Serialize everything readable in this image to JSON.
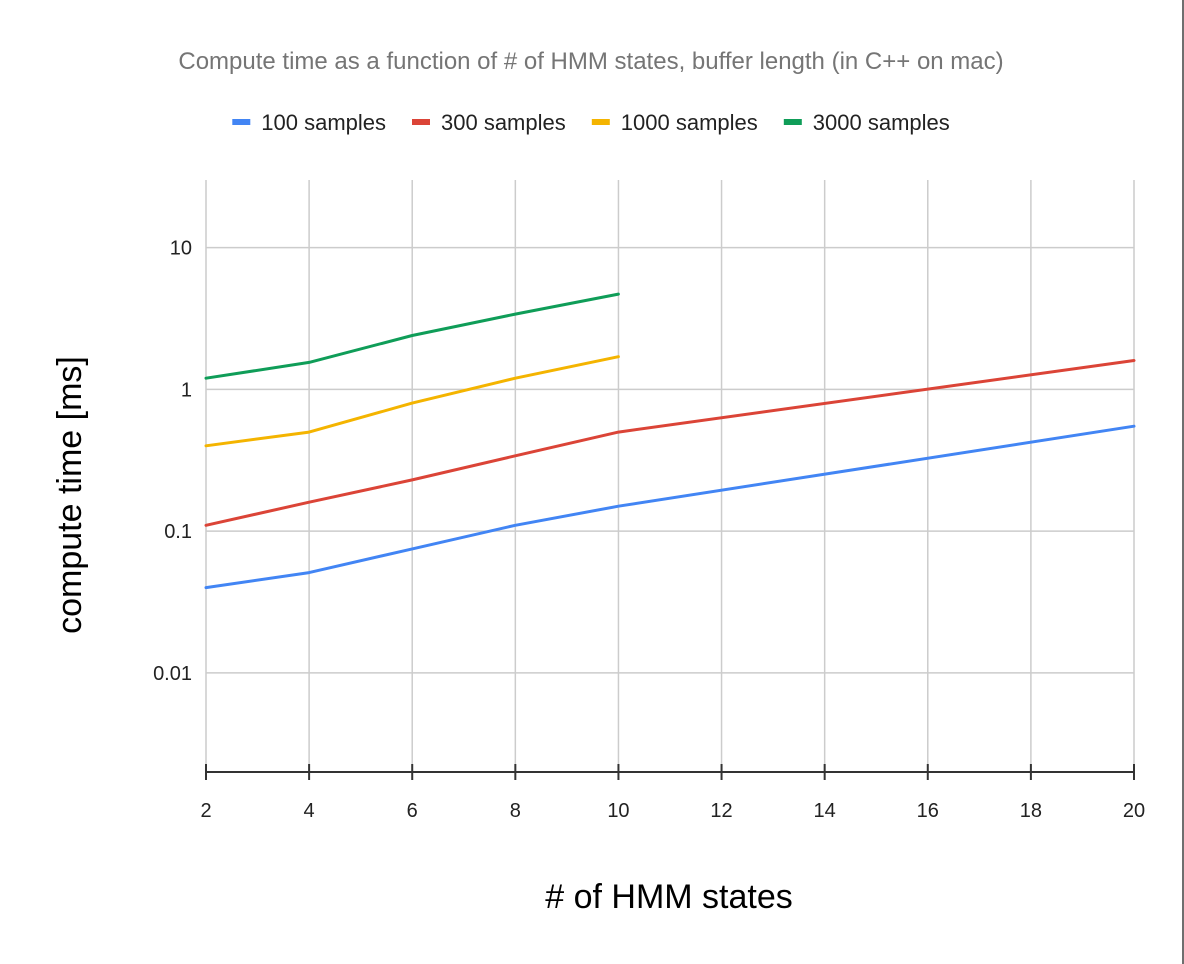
{
  "chart_data": {
    "type": "line",
    "title": "Compute time as a function of # of HMM states, buffer length  (in C++ on mac)",
    "xlabel": "# of HMM states",
    "ylabel": "compute time [ms]",
    "xlim": [
      2,
      20
    ],
    "xticks": [
      "2",
      "4",
      "6",
      "8",
      "10",
      "12",
      "14",
      "16",
      "18",
      "20"
    ],
    "yscale": "log",
    "ylim": [
      0.002,
      30
    ],
    "yticks": [
      {
        "value": 10,
        "label": "10"
      },
      {
        "value": 1,
        "label": "1"
      },
      {
        "value": 0.1,
        "label": "0.1"
      },
      {
        "value": 0.01,
        "label": "0.01"
      }
    ],
    "grid": true,
    "legend": "top",
    "series": [
      {
        "name": "100 samples",
        "color": "#4285f4",
        "points": [
          [
            2,
            0.04
          ],
          [
            4,
            0.051
          ],
          [
            6,
            0.075
          ],
          [
            8,
            0.11
          ],
          [
            10,
            0.15
          ],
          [
            20,
            0.55
          ]
        ]
      },
      {
        "name": "300 samples",
        "color": "#db4437",
        "points": [
          [
            2,
            0.11
          ],
          [
            4,
            0.16
          ],
          [
            6,
            0.23
          ],
          [
            8,
            0.34
          ],
          [
            10,
            0.5
          ],
          [
            20,
            1.6
          ]
        ]
      },
      {
        "name": "1000 samples",
        "color": "#f4b400",
        "points": [
          [
            2,
            0.4
          ],
          [
            4,
            0.5
          ],
          [
            6,
            0.8
          ],
          [
            8,
            1.2
          ],
          [
            10,
            1.7
          ]
        ]
      },
      {
        "name": "3000 samples",
        "color": "#0f9d58",
        "points": [
          [
            2,
            1.2
          ],
          [
            4,
            1.55
          ],
          [
            6,
            2.4
          ],
          [
            8,
            3.4
          ],
          [
            10,
            4.7
          ]
        ]
      }
    ]
  }
}
